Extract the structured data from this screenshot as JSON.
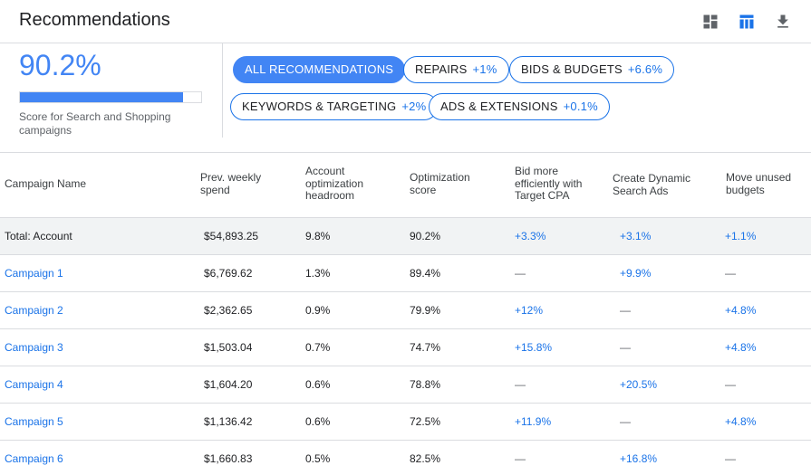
{
  "header": {
    "title": "Recommendations",
    "icons": [
      "dashboard-icon",
      "table-view-icon",
      "download-icon"
    ]
  },
  "score": {
    "value": "90.2%",
    "fraction": 0.902,
    "caption": "Score for Search and Shopping campaigns"
  },
  "filters": [
    {
      "label": "ALL RECOMMENDATIONS",
      "delta": "",
      "active": true
    },
    {
      "label": "REPAIRS",
      "delta": "+1%",
      "active": false
    },
    {
      "label": "BIDS & BUDGETS",
      "delta": "+6.6%",
      "active": false
    },
    {
      "label": "KEYWORDS & TARGETING",
      "delta": "+2%",
      "active": false
    },
    {
      "label": "ADS & EXTENSIONS",
      "delta": "+0.1%",
      "active": false
    }
  ],
  "table": {
    "columns": [
      "Campaign Name",
      "Prev. weekly spend",
      "Account optimization headroom",
      "Optimization score",
      "Bid more efficiently with Target CPA",
      "Create Dynamic Search Ads",
      "Move unused budgets"
    ],
    "rows": [
      {
        "name": "Total: Account",
        "spend": "$54,893.25",
        "headroom": "9.8%",
        "score": "90.2%",
        "cpa": "+3.3%",
        "dsa": "+3.1%",
        "budgets": "+1.1%",
        "total": true
      },
      {
        "name": "Campaign 1",
        "spend": "$6,769.62",
        "headroom": "1.3%",
        "score": "89.4%",
        "cpa": "—",
        "dsa": "+9.9%",
        "budgets": "—",
        "total": false
      },
      {
        "name": "Campaign 2",
        "spend": "$2,362.65",
        "headroom": "0.9%",
        "score": "79.9%",
        "cpa": "+12%",
        "dsa": "—",
        "budgets": "+4.8%",
        "total": false
      },
      {
        "name": "Campaign 3",
        "spend": "$1,503.04",
        "headroom": "0.7%",
        "score": "74.7%",
        "cpa": "+15.8%",
        "dsa": "—",
        "budgets": "+4.8%",
        "total": false
      },
      {
        "name": "Campaign 4",
        "spend": "$1,604.20",
        "headroom": "0.6%",
        "score": "78.8%",
        "cpa": "—",
        "dsa": "+20.5%",
        "budgets": "—",
        "total": false
      },
      {
        "name": "Campaign 5",
        "spend": "$1,136.42",
        "headroom": "0.6%",
        "score": "72.5%",
        "cpa": "+11.9%",
        "dsa": "—",
        "budgets": "+4.8%",
        "total": false
      },
      {
        "name": "Campaign 6",
        "spend": "$1,660.83",
        "headroom": "0.5%",
        "score": "82.5%",
        "cpa": "—",
        "dsa": "+16.8%",
        "budgets": "—",
        "total": false
      }
    ]
  },
  "colors": {
    "accent": "#4285f4",
    "link": "#1a73e8",
    "total_row_bg": "#f1f3f4",
    "divider": "#dadce0"
  }
}
